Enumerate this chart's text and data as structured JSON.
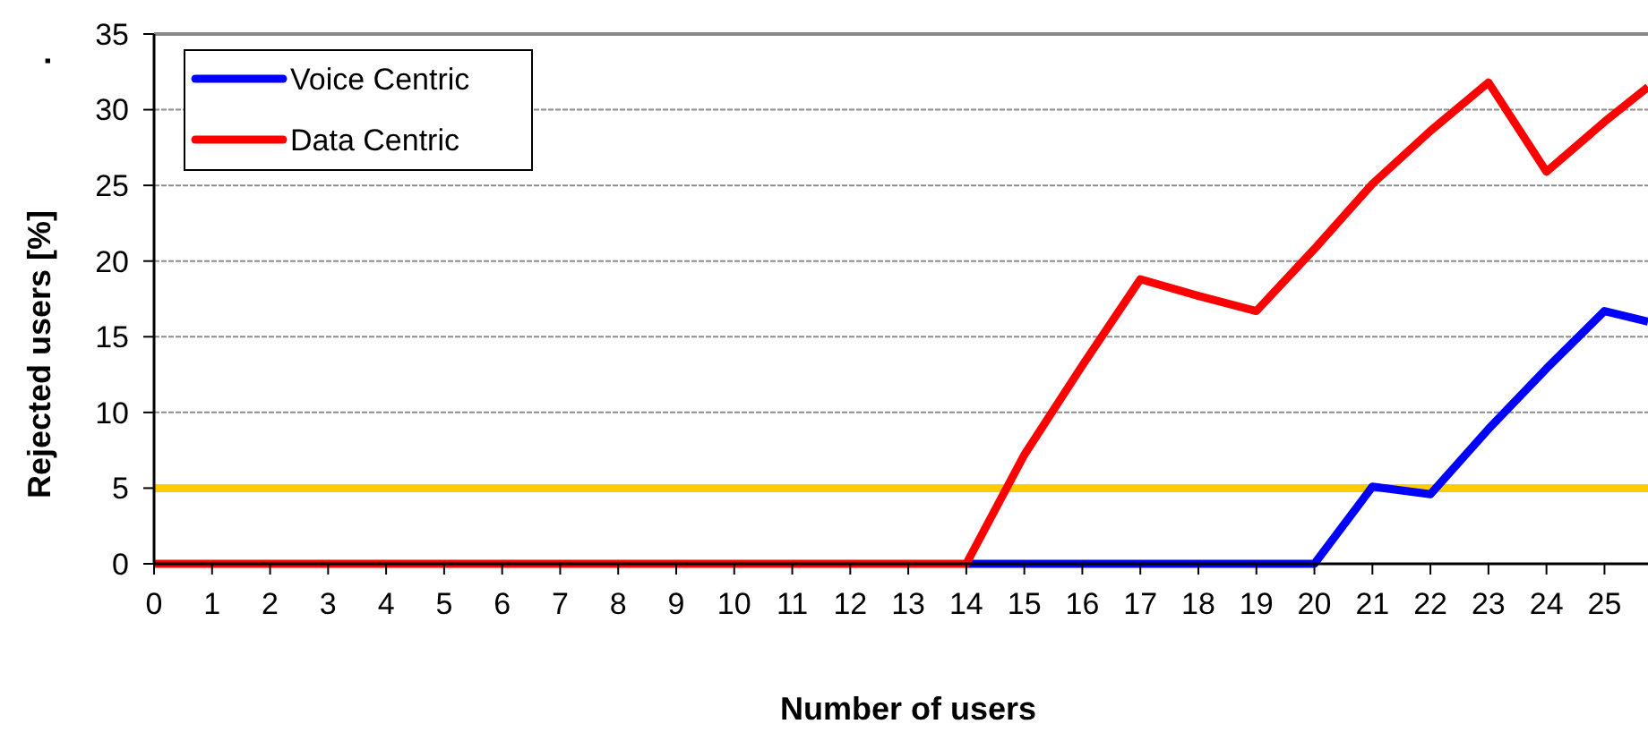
{
  "chart_data": {
    "type": "line",
    "xlabel": "Number of users",
    "ylabel": "Rejected users [%]",
    "annotations": [
      "."
    ],
    "x": [
      0,
      1,
      2,
      3,
      4,
      5,
      6,
      7,
      8,
      9,
      10,
      11,
      12,
      13,
      14,
      15,
      16,
      17,
      18,
      19,
      20,
      21,
      22,
      23,
      24,
      25,
      25.75
    ],
    "xlim": [
      0,
      25.75
    ],
    "xticks": [
      0,
      1,
      2,
      3,
      4,
      5,
      6,
      7,
      8,
      9,
      10,
      11,
      12,
      13,
      14,
      15,
      16,
      17,
      18,
      19,
      20,
      21,
      22,
      23,
      24,
      25
    ],
    "ylim": [
      0,
      35
    ],
    "yticks": [
      0,
      5,
      10,
      15,
      20,
      25,
      30,
      35
    ],
    "series": [
      {
        "name": "Voice Centric",
        "color": "#0000ff",
        "values": [
          null,
          null,
          null,
          null,
          null,
          null,
          null,
          null,
          null,
          null,
          null,
          null,
          null,
          null,
          0,
          0,
          0,
          0,
          0,
          0,
          0,
          5.1,
          4.6,
          8.9,
          12.9,
          16.7,
          16.0
        ]
      },
      {
        "name": "Data Centric",
        "color": "#ff0000",
        "values": [
          0,
          0,
          0,
          0,
          0,
          0,
          0,
          0,
          0,
          0,
          0,
          0,
          0,
          0,
          0,
          7.2,
          13.1,
          18.8,
          17.7,
          16.7,
          20.8,
          25.1,
          28.6,
          31.8,
          25.9,
          29.2,
          31.5
        ]
      }
    ],
    "ref_lines": [
      {
        "axis": "y",
        "value": 5,
        "color": "#ffcc00"
      }
    ],
    "grid": "y",
    "legend": "top left",
    "marker": "none",
    "line_style": "solid"
  }
}
